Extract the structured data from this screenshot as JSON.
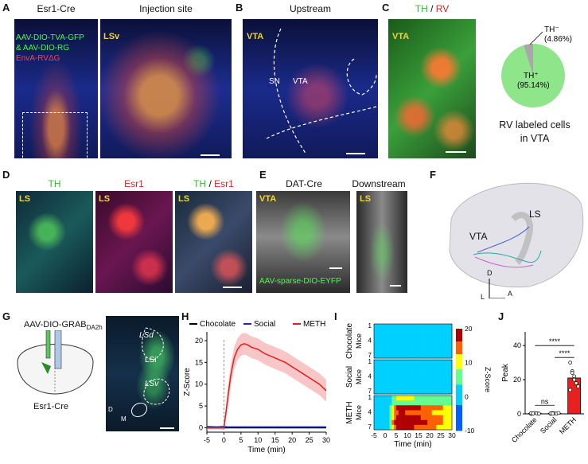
{
  "panels": {
    "A": {
      "letter": "A",
      "title_left": "Esr1-Cre",
      "title_right": "Injection site",
      "legend": [
        "AAV-DIO-TVA-GFP",
        "& AAV-DIO-RG",
        "EnvA-RVΔG"
      ],
      "region": "LSv"
    },
    "B": {
      "letter": "B",
      "title": "Upstream",
      "region": "VTA",
      "label_sn": "SN",
      "label_vta": "VTA"
    },
    "C": {
      "letter": "C",
      "title_th": "TH",
      "title_sep": " / ",
      "title_rv": "RV",
      "region": "VTA",
      "pie": {
        "slices": [
          {
            "label": "TH⁻",
            "value": 4.86,
            "pct": "(4.86%)",
            "color": "#a8a8a8"
          },
          {
            "label": "TH⁺",
            "value": 95.14,
            "pct": "(95.14%)",
            "color": "#8fe68a"
          }
        ]
      },
      "caption_line1": "RV labeled cells",
      "caption_line2": "in VTA"
    },
    "D": {
      "letter": "D",
      "titles": [
        "TH",
        "Esr1",
        "TH",
        "Esr1"
      ],
      "sep": " / ",
      "region": "LS"
    },
    "E": {
      "letter": "E",
      "title_left": "DAT-Cre",
      "title_right": "Downstream",
      "region_left": "VTA",
      "region_right": "LS",
      "caption": "AAV-sparse-DIO-EYFP"
    },
    "F": {
      "letter": "F",
      "label_ls": "LS",
      "label_vta": "VTA",
      "axis_d": "D",
      "axis_l": "L",
      "axis_a": "A"
    },
    "G": {
      "letter": "G",
      "virus": "AAV-DIO-GRAB",
      "virus_sub": "DA2h",
      "mouse": "Esr1-Cre",
      "regions": [
        "LSd",
        "LSi",
        "LSv"
      ],
      "axis_d": "D",
      "axis_m": "M"
    },
    "H": {
      "letter": "H",
      "xlabel": "Time (min)",
      "ylabel": "Z-Score",
      "legend": [
        {
          "name": "Chocolate",
          "color": "#000000"
        },
        {
          "name": "Social",
          "color": "#1f2fa8"
        },
        {
          "name": "METH",
          "color": "#e02020"
        }
      ],
      "xticks": [
        "-5",
        "0",
        "5",
        "10",
        "15",
        "20",
        "25",
        "30"
      ],
      "yticks": [
        "0",
        "5",
        "10",
        "15",
        "20"
      ]
    },
    "I": {
      "letter": "I",
      "groups": [
        "Chocolate",
        "Social",
        "METH"
      ],
      "mice_label": "Mice",
      "row_ticks": [
        "1",
        "4",
        "7"
      ],
      "xlabel": "Time (min)",
      "xticks": [
        "-5",
        "0",
        "5",
        "10",
        "15",
        "20",
        "25",
        "30"
      ],
      "colorbar": {
        "label": "Z-Score",
        "ticks": [
          "20",
          "10",
          "0",
          "-10"
        ]
      }
    },
    "J": {
      "letter": "J",
      "ylabel": "Peak",
      "yticks": [
        "0",
        "20",
        "40"
      ],
      "categories": [
        "Chocolate",
        "Social",
        "METH"
      ],
      "sig": [
        "****",
        "****",
        "ns"
      ]
    }
  },
  "chart_data": [
    {
      "type": "line",
      "title": "",
      "xlabel": "Time (min)",
      "ylabel": "Z-Score",
      "xlim": [
        -5,
        30
      ],
      "ylim": [
        -1,
        22
      ],
      "x": [
        -5,
        -2,
        0,
        1,
        2,
        3,
        4,
        5,
        6,
        7,
        8,
        10,
        12,
        15,
        18,
        20,
        22,
        25,
        28,
        30
      ],
      "series": [
        {
          "name": "Chocolate",
          "values": [
            0,
            0,
            0,
            0,
            0,
            0,
            0,
            0,
            0,
            0,
            0,
            0,
            0,
            0,
            0,
            0,
            0,
            0,
            0,
            0
          ]
        },
        {
          "name": "Social",
          "values": [
            0.3,
            0.2,
            0.3,
            0.2,
            0.2,
            0.2,
            0.2,
            0.2,
            0.2,
            0.2,
            0.2,
            0.2,
            0.2,
            0.2,
            0.2,
            0.2,
            0.2,
            0.2,
            0.2,
            0.2
          ]
        },
        {
          "name": "METH",
          "values": [
            0,
            0,
            0,
            6,
            12,
            16,
            18,
            19,
            19.3,
            19,
            18.5,
            18,
            17,
            16,
            15,
            14,
            13,
            11.5,
            10,
            8.5
          ]
        }
      ]
    },
    {
      "type": "bar",
      "title": "",
      "xlabel": "",
      "ylabel": "Peak",
      "ylim": [
        0,
        48
      ],
      "categories": [
        "Chocolate",
        "Social",
        "METH"
      ],
      "values": [
        0.3,
        0.3,
        21
      ],
      "points": [
        [
          0,
          0.2,
          0.5,
          0.3,
          0.1,
          0.4,
          0.2
        ],
        [
          0.1,
          0.4,
          0.3,
          0.2,
          0.5,
          0.3,
          0.2
        ],
        [
          30,
          25,
          22,
          18,
          16,
          14,
          24,
          20
        ]
      ]
    }
  ]
}
